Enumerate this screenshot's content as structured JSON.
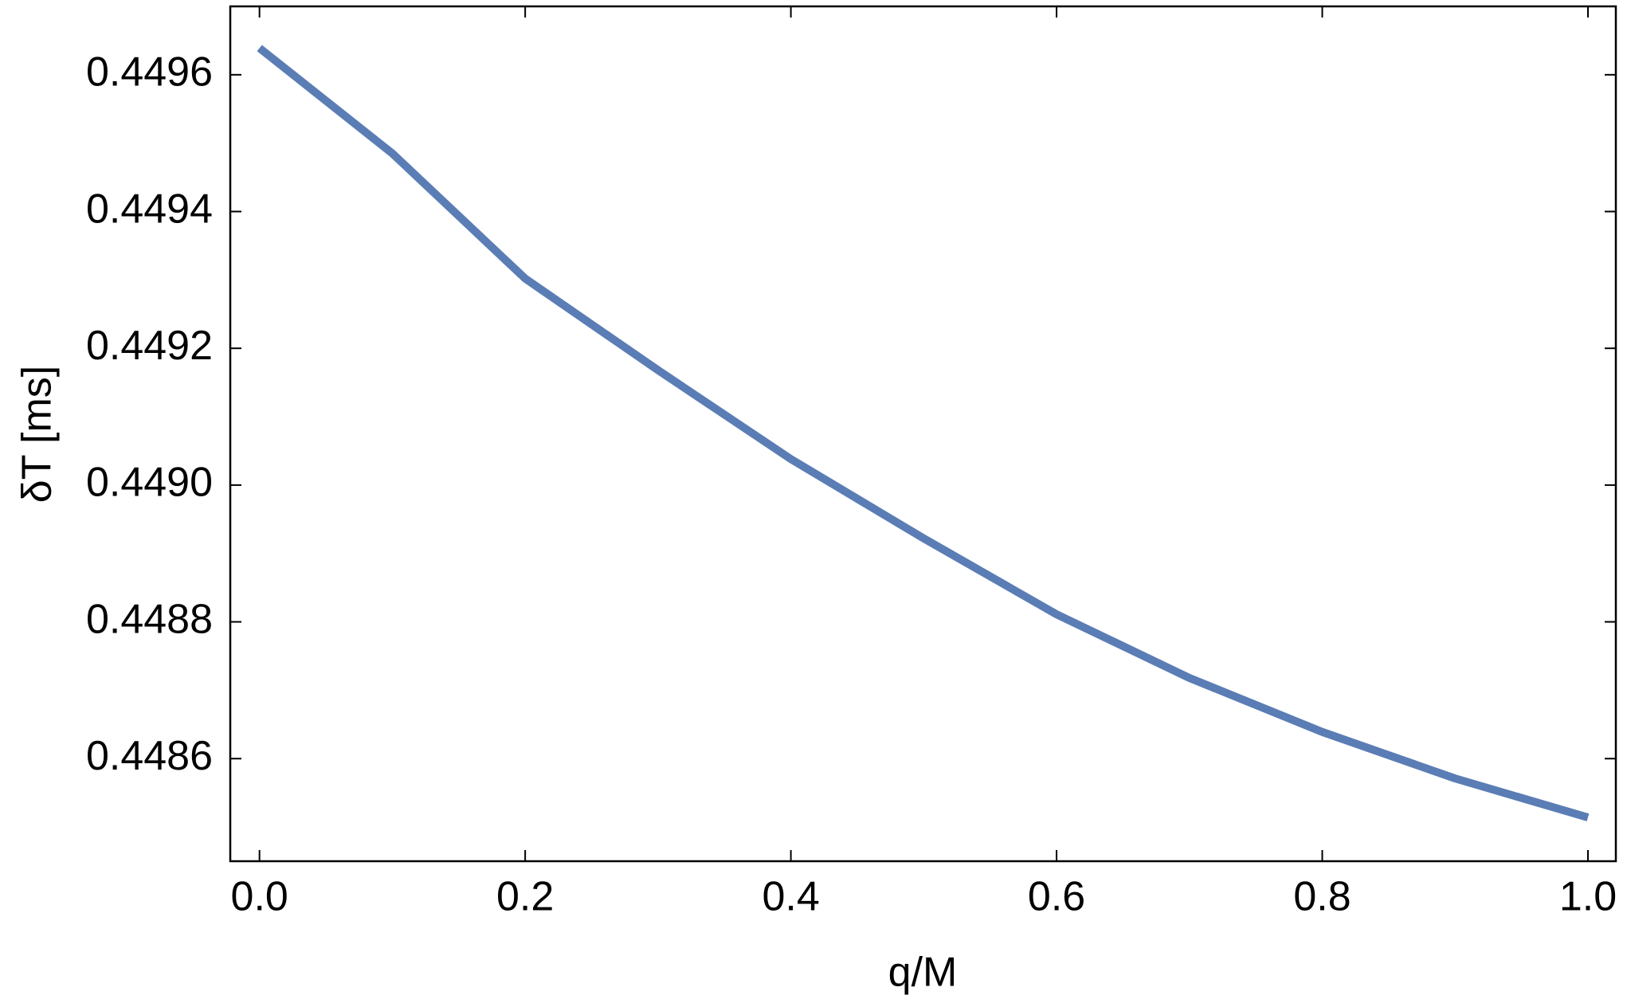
{
  "chart_data": {
    "type": "line",
    "x_label": "q/M",
    "y_label": "δT [ms]",
    "x": [
      0,
      0.1,
      0.2,
      0.3,
      0.4,
      0.5,
      0.6,
      0.7,
      0.8,
      0.9,
      1.0
    ],
    "series": [
      {
        "name": "δT",
        "color": "#5b7db5",
        "values": [
          0.449639,
          0.449485,
          0.449302,
          0.449168,
          0.449038,
          0.448922,
          0.448811,
          0.448718,
          0.448639,
          0.448571,
          0.448514
        ]
      }
    ],
    "xlim": [
      -0.022,
      1.021
    ],
    "ylim": [
      0.44845,
      0.4497
    ],
    "xticks": [
      {
        "value": 0,
        "label": "0.0"
      },
      0.2,
      0.4,
      0.6,
      0.8,
      {
        "value": 1,
        "label": "1.0"
      }
    ],
    "yticks": [
      0.4486,
      0.4488,
      {
        "value": 0.449,
        "label": "0.4490"
      },
      0.4492,
      0.4494,
      0.4496
    ],
    "grid": false
  }
}
